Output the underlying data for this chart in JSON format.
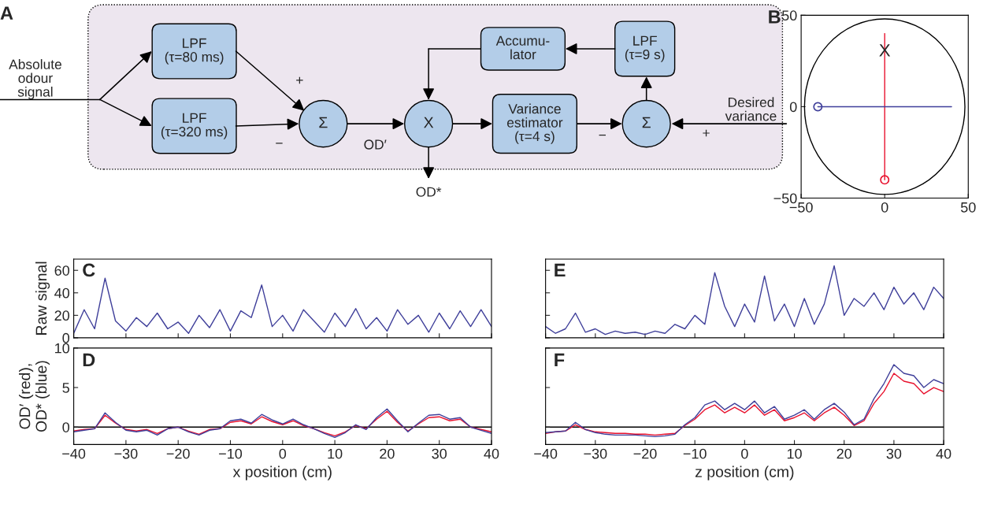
{
  "chart_data": [
    {
      "type": "other",
      "title": "A",
      "annotations": [
        "Absolute\nodour\nsignal",
        "LPF\n(τ=80 ms)",
        "LPF\n(τ=320 ms)",
        "Σ",
        "X",
        "Variance\nestimator\n(τ=4 s)",
        "Σ",
        "Accumu-\nlator",
        "LPF\n(τ=9 s)",
        "Desired\nvariance",
        "OD′",
        "OD*",
        "+",
        "−",
        "−",
        "+"
      ]
    },
    {
      "type": "line",
      "title": "B",
      "xlim": [
        -50,
        50
      ],
      "ylim": [
        -50,
        50
      ],
      "xticks": [
        {
          "value": -50,
          "label": "−50"
        },
        0,
        50
      ],
      "yticks": [
        {
          "value": -50,
          "label": "−50"
        },
        0,
        50
      ],
      "annotations": [
        {
          "text": "X",
          "x": 0,
          "y": 30
        }
      ],
      "series": [
        {
          "color": "#e8112d",
          "x": [
            0,
            0
          ],
          "values": [
            40,
            -40
          ]
        },
        {
          "color": "#3f3f9a",
          "x": [
            -40,
            40
          ],
          "values": [
            0,
            0
          ]
        },
        {
          "type": "scatter",
          "marker": "circle",
          "color": "#e8112d",
          "x": [
            0
          ],
          "values": [
            -40
          ]
        },
        {
          "type": "scatter",
          "marker": "circle",
          "color": "#3f3f9a",
          "x": [
            -40
          ],
          "values": [
            0
          ]
        }
      ]
    },
    {
      "type": "line",
      "title": "C",
      "ylabel": "Raw signal",
      "xlim": [
        -40,
        40
      ],
      "ylim": [
        0,
        70
      ],
      "xticks": [
        -40,
        -30,
        -20,
        -10,
        0,
        10,
        20,
        30,
        40
      ],
      "yticks": [
        0,
        20,
        40,
        60
      ],
      "tick_labels": "y",
      "series": [
        {
          "color": "#3f3f9a",
          "x": [
            -40,
            -38,
            -36,
            -34,
            -32,
            -30,
            -28,
            -26,
            -24,
            -22,
            -20,
            -18,
            -16,
            -14,
            -12,
            -10,
            -8,
            -6,
            -4,
            -2,
            0,
            2,
            4,
            6,
            8,
            10,
            12,
            14,
            16,
            18,
            20,
            22,
            24,
            26,
            28,
            30,
            32,
            34,
            36,
            38,
            40
          ],
          "values": [
            4,
            25,
            8,
            53,
            15,
            6,
            18,
            10,
            22,
            8,
            14,
            4,
            20,
            9,
            25,
            6,
            24,
            18,
            47,
            10,
            20,
            6,
            25,
            15,
            5,
            22,
            10,
            26,
            8,
            18,
            6,
            25,
            12,
            20,
            5,
            22,
            8,
            24,
            10,
            25,
            10
          ]
        }
      ]
    },
    {
      "type": "line",
      "title": "E",
      "xlim": [
        -40,
        40
      ],
      "ylim": [
        0,
        70
      ],
      "xticks": [
        -40,
        -30,
        -20,
        -10,
        0,
        10,
        20,
        30,
        40
      ],
      "yticks": [
        0,
        20,
        40,
        60
      ],
      "tick_labels": false,
      "series": [
        {
          "color": "#3f3f9a",
          "x": [
            -40,
            -38,
            -36,
            -34,
            -32,
            -30,
            -28,
            -26,
            -24,
            -22,
            -20,
            -18,
            -16,
            -14,
            -12,
            -10,
            -8,
            -6,
            -4,
            -2,
            0,
            2,
            4,
            6,
            8,
            10,
            12,
            14,
            16,
            18,
            20,
            22,
            24,
            26,
            28,
            30,
            32,
            34,
            36,
            38,
            40
          ],
          "values": [
            10,
            4,
            8,
            22,
            5,
            8,
            3,
            6,
            4,
            5,
            3,
            6,
            4,
            12,
            8,
            20,
            12,
            58,
            28,
            10,
            30,
            14,
            55,
            15,
            30,
            10,
            35,
            12,
            30,
            64,
            20,
            35,
            28,
            40,
            25,
            45,
            30,
            40,
            25,
            45,
            35
          ]
        }
      ]
    },
    {
      "type": "line",
      "title": "D",
      "xlabel": "x position (cm)",
      "ylabel": "OD′ (red),\nOD* (blue)",
      "xlim": [
        -40,
        40
      ],
      "ylim": [
        -2.2,
        10
      ],
      "xticks": [
        {
          "value": -40,
          "label": "−40"
        },
        {
          "value": -30,
          "label": "−30"
        },
        {
          "value": -20,
          "label": "−20"
        },
        {
          "value": -10,
          "label": "−10"
        },
        0,
        10,
        20,
        30,
        40
      ],
      "yticks": [
        0,
        5,
        10
      ],
      "ref_lines": [
        {
          "axis": "y",
          "value": 0,
          "color": "#000000"
        }
      ],
      "series": [
        {
          "color": "#e8112d",
          "x": [
            -40,
            -38,
            -36,
            -34,
            -32,
            -30,
            -28,
            -26,
            -24,
            -22,
            -20,
            -18,
            -16,
            -14,
            -12,
            -10,
            -8,
            -6,
            -4,
            -2,
            0,
            2,
            4,
            6,
            8,
            10,
            12,
            14,
            16,
            18,
            20,
            22,
            24,
            26,
            28,
            30,
            32,
            34,
            36,
            38,
            40
          ],
          "values": [
            -0.5,
            -0.3,
            -0.2,
            1.5,
            0.5,
            -0.3,
            -0.5,
            -0.3,
            -0.8,
            -0.2,
            0,
            -0.5,
            -0.9,
            -0.3,
            -0.2,
            0.6,
            0.8,
            0.4,
            1.3,
            0.7,
            0.3,
            0.8,
            0.2,
            -0.2,
            -0.7,
            -1.1,
            -0.6,
            0.2,
            -0.2,
            1.0,
            2.0,
            0.6,
            -0.5,
            0.4,
            1.2,
            1.3,
            0.8,
            1.0,
            0,
            -0.3,
            -0.6
          ]
        },
        {
          "color": "#3f3f9a",
          "x": [
            -40,
            -38,
            -36,
            -34,
            -32,
            -30,
            -28,
            -26,
            -24,
            -22,
            -20,
            -18,
            -16,
            -14,
            -12,
            -10,
            -8,
            -6,
            -4,
            -2,
            0,
            2,
            4,
            6,
            8,
            10,
            12,
            14,
            16,
            18,
            20,
            22,
            24,
            26,
            28,
            30,
            32,
            34,
            36,
            38,
            40
          ],
          "values": [
            -0.6,
            -0.4,
            -0.2,
            1.8,
            0.6,
            -0.4,
            -0.6,
            -0.4,
            -1.0,
            -0.2,
            0,
            -0.6,
            -1.0,
            -0.4,
            -0.2,
            0.8,
            1.0,
            0.5,
            1.6,
            0.9,
            0.4,
            1.0,
            0.3,
            -0.2,
            -0.8,
            -1.3,
            -0.7,
            0.3,
            -0.3,
            1.2,
            2.3,
            0.8,
            -0.6,
            0.5,
            1.5,
            1.6,
            1.0,
            1.2,
            0,
            -0.4,
            -0.8
          ]
        }
      ]
    },
    {
      "type": "line",
      "title": "F",
      "xlabel": "z position (cm)",
      "xlim": [
        -40,
        40
      ],
      "ylim": [
        -2.2,
        10
      ],
      "xticks": [
        {
          "value": -40,
          "label": "−40"
        },
        {
          "value": -30,
          "label": "−30"
        },
        {
          "value": -20,
          "label": "−20"
        },
        {
          "value": -10,
          "label": "−10"
        },
        0,
        10,
        20,
        30,
        40
      ],
      "yticks": [
        0,
        5,
        10
      ],
      "tick_labels": "x",
      "ref_lines": [
        {
          "axis": "y",
          "value": 0,
          "color": "#000000"
        }
      ],
      "series": [
        {
          "color": "#e8112d",
          "x": [
            -40,
            -38,
            -36,
            -34,
            -32,
            -30,
            -28,
            -26,
            -24,
            -22,
            -20,
            -18,
            -16,
            -14,
            -12,
            -10,
            -8,
            -6,
            -4,
            -2,
            0,
            2,
            4,
            6,
            8,
            10,
            12,
            14,
            16,
            18,
            20,
            22,
            24,
            26,
            28,
            30,
            32,
            34,
            36,
            38,
            40
          ],
          "values": [
            -0.8,
            -0.6,
            -0.5,
            0.3,
            -0.3,
            -0.6,
            -0.7,
            -0.8,
            -0.8,
            -0.9,
            -0.9,
            -1.0,
            -0.9,
            -0.8,
            0.2,
            1.0,
            2.2,
            2.8,
            1.8,
            2.5,
            1.8,
            2.8,
            1.5,
            2.2,
            0.8,
            1.2,
            1.8,
            0.8,
            1.8,
            2.5,
            1.5,
            0.2,
            0.8,
            3.0,
            4.5,
            6.8,
            5.8,
            5.5,
            4.2,
            5.0,
            4.5
          ]
        },
        {
          "color": "#3f3f9a",
          "x": [
            -40,
            -38,
            -36,
            -34,
            -32,
            -30,
            -28,
            -26,
            -24,
            -22,
            -20,
            -18,
            -16,
            -14,
            -12,
            -10,
            -8,
            -6,
            -4,
            -2,
            0,
            2,
            4,
            6,
            8,
            10,
            12,
            14,
            16,
            18,
            20,
            22,
            24,
            26,
            28,
            30,
            32,
            34,
            36,
            38,
            40
          ],
          "values": [
            -0.7,
            -0.6,
            -0.5,
            0.6,
            -0.3,
            -0.7,
            -0.9,
            -1.0,
            -1.0,
            -1.0,
            -1.1,
            -1.2,
            -1.1,
            -0.9,
            0.3,
            1.2,
            2.8,
            3.3,
            2.2,
            3.0,
            2.2,
            3.3,
            1.8,
            2.6,
            1.0,
            1.5,
            2.2,
            1.0,
            2.2,
            3.0,
            1.9,
            0.3,
            1.0,
            3.6,
            5.5,
            7.9,
            6.8,
            6.5,
            5.0,
            6.0,
            5.5
          ]
        }
      ]
    }
  ]
}
